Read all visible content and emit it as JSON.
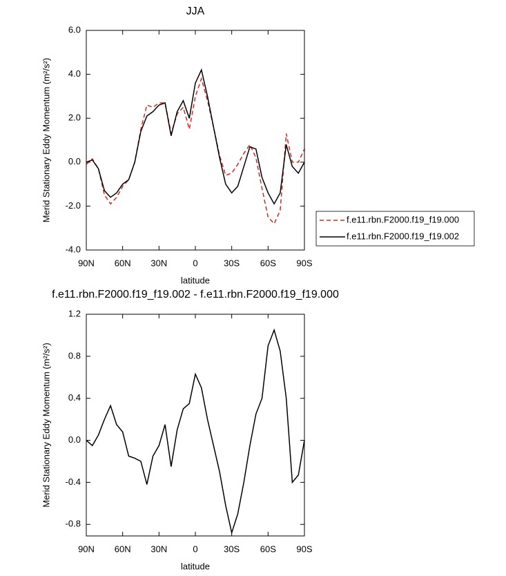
{
  "chart_data": [
    {
      "type": "line",
      "title": "JJA",
      "xlabel": "latitude",
      "ylabel": "Merid Stationary Eddy Momentum (m²/s²)",
      "x": [
        90,
        85,
        80,
        75,
        70,
        65,
        60,
        55,
        50,
        45,
        40,
        35,
        30,
        25,
        20,
        15,
        10,
        5,
        0,
        -5,
        -10,
        -15,
        -20,
        -25,
        -30,
        -35,
        -40,
        -45,
        -50,
        -55,
        -60,
        -65,
        -70,
        -75,
        -80,
        -85,
        -90
      ],
      "xlim": [
        90,
        -90
      ],
      "xticks": [
        {
          "value": 90,
          "label": "90N"
        },
        {
          "value": 60,
          "label": "60N"
        },
        {
          "value": 30,
          "label": "30N"
        },
        0,
        {
          "value": -30,
          "label": "30S"
        },
        {
          "value": -60,
          "label": "60S"
        },
        {
          "value": -90,
          "label": "90S"
        }
      ],
      "ylim": [
        -4,
        6
      ],
      "yticks": [
        {
          "value": -4,
          "label": "-4.0"
        },
        {
          "value": -2,
          "label": "-2.0"
        },
        {
          "value": 0,
          "label": "0.0"
        },
        {
          "value": 2,
          "label": "2.0"
        },
        {
          "value": 4,
          "label": "4.0"
        },
        {
          "value": 6,
          "label": "6.0"
        }
      ],
      "legend": "right",
      "series": [
        {
          "name": "f.e11.rbn.F2000.f19_f19.000",
          "color": "#e0201b",
          "line_style": "dashed",
          "values": [
            -0.1,
            0.15,
            -0.3,
            -1.5,
            -1.9,
            -1.6,
            -1.1,
            -0.8,
            0.0,
            1.5,
            2.6,
            2.5,
            2.7,
            2.7,
            1.3,
            2.2,
            2.5,
            1.5,
            3.0,
            3.8,
            2.8,
            1.6,
            0.3,
            -0.6,
            -0.5,
            -0.1,
            0.4,
            0.8,
            0.2,
            -1.2,
            -2.5,
            -2.8,
            -2.2,
            1.3,
            0.0,
            0.0,
            0.6
          ]
        },
        {
          "name": "f.e11.rbn.F2000.f19_f19.002",
          "color": "#000000",
          "line_style": "solid",
          "values": [
            0.0,
            0.1,
            -0.3,
            -1.3,
            -1.6,
            -1.4,
            -1.0,
            -0.8,
            0.0,
            1.4,
            2.1,
            2.3,
            2.6,
            2.7,
            1.2,
            2.3,
            2.8,
            2.0,
            3.6,
            4.2,
            3.0,
            1.6,
            0.2,
            -1.0,
            -1.4,
            -1.1,
            -0.2,
            0.7,
            0.6,
            -0.7,
            -1.4,
            -1.9,
            -1.4,
            0.8,
            -0.2,
            -0.5,
            0.0
          ]
        }
      ]
    },
    {
      "type": "line",
      "title": "f.e11.rbn.F2000.f19_f19.002 - f.e11.rbn.F2000.f19_f19.000",
      "xlabel": "latitude",
      "ylabel": "Merid Stationary Eddy Momentum (m²/s²)",
      "x": [
        90,
        85,
        80,
        75,
        70,
        65,
        60,
        55,
        50,
        45,
        40,
        35,
        30,
        25,
        20,
        15,
        10,
        5,
        0,
        -5,
        -10,
        -15,
        -20,
        -25,
        -30,
        -35,
        -40,
        -45,
        -50,
        -55,
        -60,
        -65,
        -70,
        -75,
        -80,
        -85,
        -90
      ],
      "xlim": [
        90,
        -90
      ],
      "xticks": [
        {
          "value": 90,
          "label": "90N"
        },
        {
          "value": 60,
          "label": "60N"
        },
        {
          "value": 30,
          "label": "30N"
        },
        0,
        {
          "value": -30,
          "label": "30S"
        },
        {
          "value": -60,
          "label": "60S"
        },
        {
          "value": -90,
          "label": "90S"
        }
      ],
      "ylim": [
        -0.91,
        1.2
      ],
      "yticks": [
        -0.8,
        -0.4,
        {
          "value": 0,
          "label": "0.0"
        },
        0.4,
        0.8,
        1.2
      ],
      "series": [
        {
          "color": "#000000",
          "line_style": "solid",
          "values": [
            0.0,
            -0.05,
            0.05,
            0.2,
            0.33,
            0.15,
            0.08,
            -0.15,
            -0.17,
            -0.2,
            -0.42,
            -0.15,
            -0.05,
            0.15,
            -0.25,
            0.1,
            0.3,
            0.35,
            0.63,
            0.5,
            0.2,
            -0.05,
            -0.3,
            -0.62,
            -0.88,
            -0.7,
            -0.4,
            -0.05,
            0.25,
            0.4,
            0.9,
            1.05,
            0.85,
            0.4,
            -0.4,
            -0.33,
            0.0
          ]
        }
      ]
    }
  ]
}
